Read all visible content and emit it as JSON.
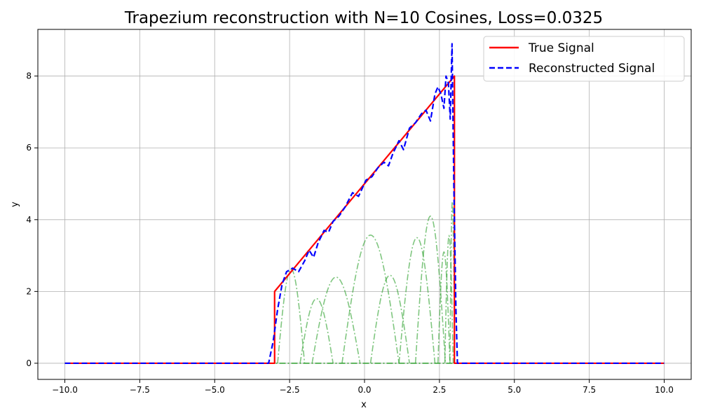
{
  "chart_data": {
    "type": "line",
    "title": "Trapezium reconstruction with N=10 Cosines, Loss=0.0325",
    "xlabel": "x",
    "ylabel": "y",
    "xlim": [
      -10.9,
      10.9
    ],
    "ylim": [
      -0.45,
      9.3
    ],
    "xticks": [
      -10.0,
      -7.5,
      -5.0,
      -2.5,
      0.0,
      2.5,
      5.0,
      7.5,
      10.0
    ],
    "xtick_labels": [
      "−10.0",
      "−7.5",
      "−5.0",
      "−2.5",
      "0.0",
      "2.5",
      "5.0",
      "7.5",
      "10.0"
    ],
    "yticks": [
      0,
      2,
      4,
      6,
      8
    ],
    "ytick_labels": [
      "0",
      "2",
      "4",
      "6",
      "8"
    ],
    "grid": true,
    "legend": "top-right",
    "series": [
      {
        "name": "True Signal",
        "color": "#ff0000",
        "style": "solid",
        "points": [
          [
            -10,
            0
          ],
          [
            -3.0,
            0
          ],
          [
            -3.0,
            2.0
          ],
          [
            3.0,
            8.0
          ],
          [
            3.0,
            0
          ],
          [
            10,
            0
          ]
        ]
      },
      {
        "name": "Reconstructed Signal",
        "color": "#0000ff",
        "style": "dashed",
        "points": [
          [
            -10,
            0
          ],
          [
            -3.2,
            0
          ],
          [
            -3.05,
            0.6
          ],
          [
            -2.9,
            1.5
          ],
          [
            -2.75,
            2.2
          ],
          [
            -2.6,
            2.55
          ],
          [
            -2.4,
            2.65
          ],
          [
            -2.2,
            2.55
          ],
          [
            -2.0,
            2.85
          ],
          [
            -1.85,
            3.15
          ],
          [
            -1.7,
            2.95
          ],
          [
            -1.55,
            3.35
          ],
          [
            -1.35,
            3.7
          ],
          [
            -1.2,
            3.65
          ],
          [
            -1.05,
            3.95
          ],
          [
            -0.85,
            4.1
          ],
          [
            -0.65,
            4.35
          ],
          [
            -0.4,
            4.75
          ],
          [
            -0.2,
            4.65
          ],
          [
            0.05,
            5.1
          ],
          [
            0.25,
            5.2
          ],
          [
            0.45,
            5.45
          ],
          [
            0.65,
            5.6
          ],
          [
            0.8,
            5.5
          ],
          [
            0.95,
            5.85
          ],
          [
            1.15,
            6.2
          ],
          [
            1.3,
            5.95
          ],
          [
            1.5,
            6.55
          ],
          [
            1.7,
            6.7
          ],
          [
            1.9,
            6.95
          ],
          [
            2.05,
            7.05
          ],
          [
            2.2,
            6.75
          ],
          [
            2.35,
            7.5
          ],
          [
            2.45,
            7.7
          ],
          [
            2.55,
            7.5
          ],
          [
            2.65,
            7.1
          ],
          [
            2.72,
            8.0
          ],
          [
            2.8,
            7.8
          ],
          [
            2.86,
            6.8
          ],
          [
            2.92,
            8.9
          ],
          [
            2.98,
            5.0
          ],
          [
            3.05,
            1.5
          ],
          [
            3.1,
            0
          ],
          [
            10,
            0
          ]
        ]
      }
    ],
    "components": {
      "color": "#2ca02c",
      "style": "dashdot",
      "baseline": 0,
      "arches": [
        {
          "center": -2.45,
          "halfwidth": 0.45,
          "height": 2.62
        },
        {
          "center": -1.6,
          "halfwidth": 0.55,
          "height": 1.8
        },
        {
          "center": -0.95,
          "halfwidth": 0.8,
          "height": 2.4
        },
        {
          "center": 0.2,
          "halfwidth": 0.95,
          "height": 3.57
        },
        {
          "center": 0.85,
          "halfwidth": 0.65,
          "height": 2.45
        },
        {
          "center": 1.75,
          "halfwidth": 0.6,
          "height": 3.5
        },
        {
          "center": 2.2,
          "halfwidth": 0.5,
          "height": 4.1
        },
        {
          "center": 2.65,
          "halfwidth": 0.2,
          "height": 3.1
        },
        {
          "center": 2.82,
          "halfwidth": 0.14,
          "height": 3.55
        },
        {
          "center": 2.93,
          "halfwidth": 0.08,
          "height": 4.5
        }
      ]
    }
  }
}
